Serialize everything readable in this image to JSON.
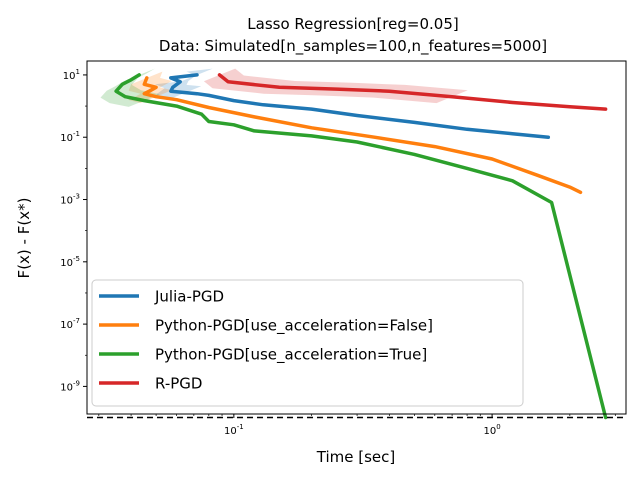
{
  "chart_data": {
    "type": "line",
    "title": "Lasso Regression[reg=0.05]",
    "subtitle": "Data: Simulated[n_samples=100,n_features=5000]",
    "xlabel": "Time [sec]",
    "ylabel": "F(x) - F(x*)",
    "xscale": "log",
    "yscale": "log",
    "xlim": [
      0.027,
      3.3
    ],
    "ylim": [
      1.3e-10,
      28
    ],
    "x_ticks": [
      {
        "value": 0.1,
        "label": "10^-1"
      },
      {
        "value": 1,
        "label": "10^0"
      }
    ],
    "y_ticks": [
      {
        "value": 10,
        "label": "10^1"
      },
      {
        "value": 0.1,
        "label": "10^-1"
      },
      {
        "value": 0.001,
        "label": "10^-3"
      },
      {
        "value": 1e-05,
        "label": "10^-5"
      },
      {
        "value": 1e-07,
        "label": "10^-7"
      },
      {
        "value": 1e-09,
        "label": "10^-9"
      }
    ],
    "reference_line": {
      "y": 1e-10,
      "style": "dashed",
      "color": "#000000"
    },
    "grid": false,
    "legend_position": "lower-left",
    "series": [
      {
        "name": "Julia-PGD",
        "color": "#1f77b4",
        "points": [
          {
            "x": 0.072,
            "y": 10
          },
          {
            "x": 0.057,
            "y": 8
          },
          {
            "x": 0.062,
            "y": 6
          },
          {
            "x": 0.058,
            "y": 4
          },
          {
            "x": 0.057,
            "y": 3
          },
          {
            "x": 0.065,
            "y": 2.7
          },
          {
            "x": 0.072,
            "y": 2.5
          },
          {
            "x": 0.08,
            "y": 2.2
          },
          {
            "x": 0.1,
            "y": 1.5
          },
          {
            "x": 0.13,
            "y": 1.1
          },
          {
            "x": 0.2,
            "y": 0.8
          },
          {
            "x": 0.3,
            "y": 0.5
          },
          {
            "x": 0.5,
            "y": 0.3
          },
          {
            "x": 0.8,
            "y": 0.18
          },
          {
            "x": 1.2,
            "y": 0.13
          },
          {
            "x": 1.65,
            "y": 0.1
          }
        ]
      },
      {
        "name": "Python-PGD[use_acceleration=False]",
        "color": "#ff7f0e",
        "points": [
          {
            "x": 0.046,
            "y": 8
          },
          {
            "x": 0.045,
            "y": 5
          },
          {
            "x": 0.05,
            "y": 4
          },
          {
            "x": 0.047,
            "y": 3
          },
          {
            "x": 0.045,
            "y": 2.5
          },
          {
            "x": 0.05,
            "y": 2
          },
          {
            "x": 0.06,
            "y": 1.6
          },
          {
            "x": 0.08,
            "y": 0.9
          },
          {
            "x": 0.12,
            "y": 0.45
          },
          {
            "x": 0.2,
            "y": 0.2
          },
          {
            "x": 0.35,
            "y": 0.1
          },
          {
            "x": 0.6,
            "y": 0.05
          },
          {
            "x": 1.0,
            "y": 0.02
          },
          {
            "x": 1.5,
            "y": 0.006
          },
          {
            "x": 2.0,
            "y": 0.0025
          },
          {
            "x": 2.2,
            "y": 0.0017
          }
        ]
      },
      {
        "name": "Python-PGD[use_acceleration=True]",
        "color": "#2ca02c",
        "points": [
          {
            "x": 0.043,
            "y": 10
          },
          {
            "x": 0.04,
            "y": 7
          },
          {
            "x": 0.037,
            "y": 5
          },
          {
            "x": 0.035,
            "y": 3
          },
          {
            "x": 0.038,
            "y": 2
          },
          {
            "x": 0.045,
            "y": 1.5
          },
          {
            "x": 0.06,
            "y": 1.0
          },
          {
            "x": 0.075,
            "y": 0.55
          },
          {
            "x": 0.08,
            "y": 0.32
          },
          {
            "x": 0.1,
            "y": 0.25
          },
          {
            "x": 0.12,
            "y": 0.16
          },
          {
            "x": 0.2,
            "y": 0.11
          },
          {
            "x": 0.3,
            "y": 0.07
          },
          {
            "x": 0.5,
            "y": 0.028
          },
          {
            "x": 0.8,
            "y": 0.01
          },
          {
            "x": 1.2,
            "y": 0.004
          },
          {
            "x": 1.7,
            "y": 0.0008
          },
          {
            "x": 2.75,
            "y": 1e-10
          }
        ]
      },
      {
        "name": "R-PGD",
        "color": "#d62728",
        "points": [
          {
            "x": 0.088,
            "y": 10
          },
          {
            "x": 0.095,
            "y": 6
          },
          {
            "x": 0.15,
            "y": 4
          },
          {
            "x": 0.25,
            "y": 3.5
          },
          {
            "x": 0.4,
            "y": 3
          },
          {
            "x": 0.7,
            "y": 2
          },
          {
            "x": 1.2,
            "y": 1.3
          },
          {
            "x": 2.0,
            "y": 0.95
          },
          {
            "x": 2.75,
            "y": 0.8
          }
        ]
      }
    ]
  }
}
